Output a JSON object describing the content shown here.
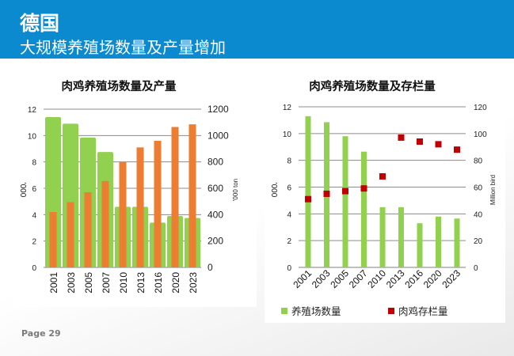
{
  "header": {
    "title": "德国",
    "subtitle": "大规模养殖场数量及产量增加"
  },
  "footer": {
    "page": "Page 29"
  },
  "colors": {
    "header": "#0b8ad0",
    "green": "#92d050",
    "orange": "#ed7d31",
    "red": "#c00000"
  },
  "chart_data": [
    {
      "type": "bar",
      "title": "肉鸡养殖场数量及产量",
      "categories": [
        "2001",
        "2003",
        "2005",
        "2007",
        "2010",
        "2013",
        "2016",
        "2020",
        "2023"
      ],
      "ylabel": "'000",
      "y2label": "'000 ton",
      "ylim": [
        0,
        12
      ],
      "yticks": [
        0,
        2,
        4,
        6,
        8,
        10,
        12
      ],
      "y2lim": [
        0,
        1200
      ],
      "y2ticks": [
        0,
        200,
        400,
        600,
        800,
        1000,
        1200
      ],
      "grid": true,
      "series": [
        {
          "axis": "left",
          "color": "#92d050",
          "values": [
            11.4,
            10.9,
            9.85,
            8.75,
            4.6,
            4.6,
            3.4,
            3.9,
            3.75
          ]
        },
        {
          "axis": "right",
          "color": "#ed7d31",
          "values": [
            420,
            495,
            570,
            655,
            800,
            910,
            960,
            1065,
            1085
          ]
        }
      ]
    },
    {
      "type": "bar",
      "title": "肉鸡养殖场数量及存栏量",
      "categories": [
        "2001",
        "2003",
        "2005",
        "2007",
        "2010",
        "2013",
        "2016",
        "2020",
        "2023"
      ],
      "ylabel": "'000",
      "y2label": "Million bird",
      "ylim": [
        0,
        12
      ],
      "yticks": [
        0,
        2,
        4,
        6,
        8,
        10,
        12
      ],
      "y2lim": [
        0,
        120
      ],
      "y2ticks": [
        0,
        20,
        40,
        60,
        80,
        100,
        120
      ],
      "grid": true,
      "legend": "bottom",
      "series": [
        {
          "name": "养殖场数量",
          "axis": "left",
          "kind": "bar",
          "color": "#92d050",
          "values": [
            11.3,
            10.85,
            9.8,
            8.65,
            4.5,
            4.5,
            3.3,
            3.8,
            3.65
          ]
        },
        {
          "name": "肉鸡存栏量",
          "axis": "right",
          "kind": "marker",
          "color": "#c00000",
          "values": [
            51,
            55,
            57,
            59,
            68,
            97,
            94,
            92,
            88
          ]
        }
      ]
    }
  ]
}
